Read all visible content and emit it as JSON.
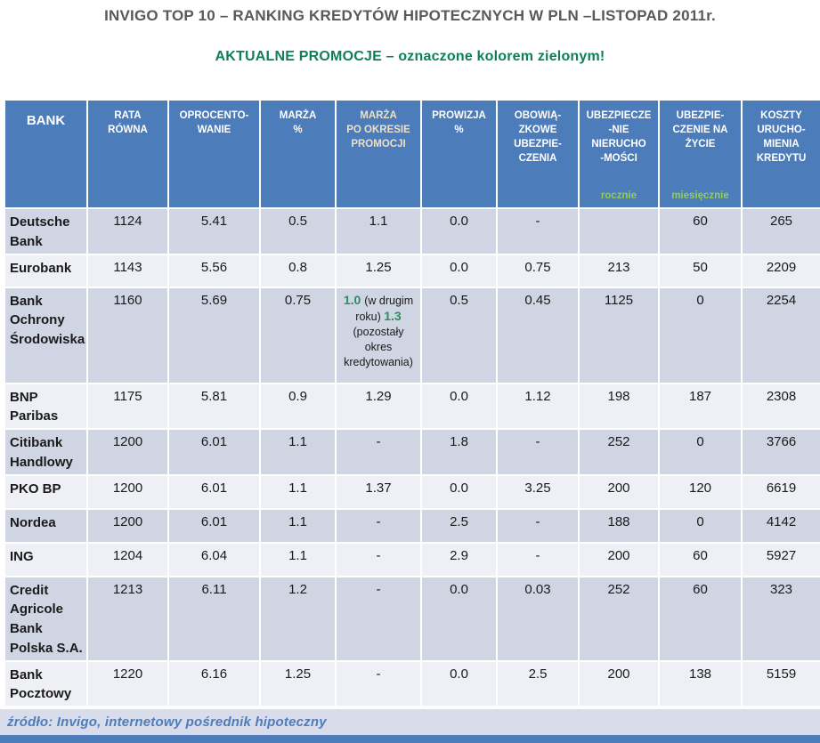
{
  "title": "INVIGO TOP 10 – RANKING KREDYTÓW HIPOTECZNYCH W PLN –LISTOPAD 2011r.",
  "subtitle": "AKTUALNE PROMOCJE – oznaczone kolorem zielonym!",
  "colors": {
    "header_blue": "#4d7cba",
    "promo_green": "#27905c",
    "sublabel_green": "#8fd050",
    "title_gray": "#595959",
    "row_dark": "#cfd5e3",
    "row_light": "#eef0f6",
    "footer_bg": "#d9dcea"
  },
  "table": {
    "columns": [
      {
        "label": "BANK"
      },
      {
        "label": "RATA\nRÓWNA"
      },
      {
        "label": "OPROCENTO-\nWANIE"
      },
      {
        "label": "MARŻA\n%"
      },
      {
        "label": "MARŻA\nPO OKRESIE\nPROMOCJI",
        "cream": true
      },
      {
        "label": "PROWIZJA\n%"
      },
      {
        "label": "OBOWIĄ-\nZKOWE\nUBEZPIE-\nCZENIA"
      },
      {
        "label": "UBEZPIECZE\n-NIE\nNIERUCHO\n-MOŚCI",
        "sublabel": "rocznie"
      },
      {
        "label": "UBEZPIE-\nCZENIE NA\nŻYCIE",
        "sublabel": "miesięcznie"
      },
      {
        "label": "KOSZTY\nURUCHO-\nMIENIA\nKREDYTU"
      }
    ],
    "rows": [
      {
        "bank": "Deutsche\nBank",
        "cells": [
          "1124",
          "5.41",
          {
            "v": "0.5",
            "green": true
          },
          {
            "v": "1.1",
            "green": true
          },
          {
            "v": "0.0",
            "green": true
          },
          "-",
          "",
          "60",
          "265"
        ]
      },
      {
        "bank": "Eurobank",
        "cells": [
          "1143",
          "5.56",
          {
            "v": "0.8",
            "green": true
          },
          {
            "v": "1.25",
            "green": true
          },
          {
            "v": "0.0",
            "green": true
          },
          "0.75",
          "213",
          "50",
          "2209"
        ]
      },
      {
        "bank": "Bank\nOchrony\nŚrodowiska",
        "cells": [
          "1160",
          "5.69",
          {
            "v": "0.75",
            "green": true
          },
          {
            "parts": [
              {
                "t": "1.0 ",
                "green": true
              },
              {
                "t": "(w drugim roku) "
              },
              {
                "t": "1.3",
                "green": true
              },
              {
                "t": " (pozostały okres kredytowania)"
              }
            ]
          },
          "0.5",
          "0.45",
          "1125",
          "0",
          "2254"
        ]
      },
      {
        "bank": "BNP\nParibas",
        "cells": [
          "1175",
          "5.81",
          {
            "v": "0.9",
            "green": true
          },
          {
            "v": "1.29",
            "green": true
          },
          {
            "v": "0.0",
            "green": true
          },
          "1.12",
          "198",
          "187",
          "2308"
        ]
      },
      {
        "bank": "Citibank\nHandlowy",
        "cells": [
          "1200",
          "6.01",
          {
            "v": "1.1",
            "green": true
          },
          "-",
          {
            "v": "1.8",
            "green": true
          },
          "-",
          "252",
          "0",
          "3766"
        ]
      },
      {
        "bank": "PKO BP",
        "cells": [
          "1200",
          "6.01",
          {
            "v": "1.1",
            "green": true
          },
          {
            "v": "1.37",
            "green": true
          },
          {
            "v": "0.0",
            "green": true
          },
          "3.25",
          "200",
          "120",
          "6619"
        ]
      },
      {
        "bank": "Nordea",
        "cells": [
          "1200",
          "6.01",
          {
            "v": "1.1",
            "green": true
          },
          "-",
          "2.5",
          "-",
          "188",
          "0",
          "4142"
        ]
      },
      {
        "bank": "ING",
        "cells": [
          "1204",
          "6.04",
          {
            "v": "1.1",
            "green": true
          },
          "-",
          "2.9",
          "-",
          "200",
          "60",
          "5927"
        ]
      },
      {
        "bank": "Credit\nAgricole\nBank\nPolska S.A.",
        "cells": [
          "1213",
          "6.11",
          {
            "v": "1.2",
            "green": true
          },
          "-",
          {
            "v": "0.0",
            "green": true
          },
          "0.03",
          "252",
          "60",
          "323"
        ]
      },
      {
        "bank": "Bank\nPocztowy",
        "cells": [
          "1220",
          "6.16",
          {
            "v": "1.25",
            "green": true
          },
          "-",
          {
            "v": "0.0",
            "green": true
          },
          "2.5",
          "200",
          "138",
          "5159"
        ]
      }
    ]
  },
  "source": "źródło: Invigo, internetowy pośrednik hipoteczny"
}
